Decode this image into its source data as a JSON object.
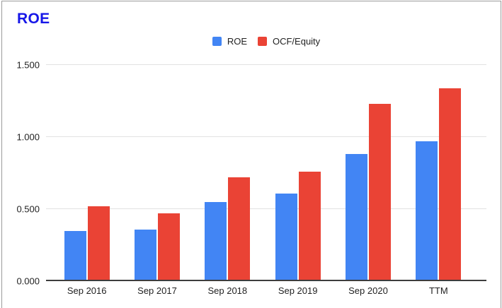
{
  "title": "ROE",
  "title_color": "#1717e8",
  "colors": {
    "roe_series": "#4285f4",
    "ocf_equity_series": "#ea4335",
    "frame_border": "#9b9b9b"
  },
  "legend": [
    {
      "label": "ROE",
      "color": "#4285f4"
    },
    {
      "label": "OCF/Equity",
      "color": "#ea4335"
    }
  ],
  "chart_data": {
    "type": "bar",
    "title": "ROE",
    "categories": [
      "Sep 2016",
      "Sep 2017",
      "Sep 2018",
      "Sep 2019",
      "Sep 2020",
      "TTM"
    ],
    "series": [
      {
        "name": "ROE",
        "color": "#4285f4",
        "values": [
          0.35,
          0.36,
          0.55,
          0.61,
          0.88,
          0.97
        ]
      },
      {
        "name": "OCF/Equity",
        "color": "#ea4335",
        "values": [
          0.52,
          0.47,
          0.72,
          0.76,
          1.23,
          1.34
        ]
      }
    ],
    "xlabel": "",
    "ylabel": "",
    "ylim": [
      0,
      1.5
    ],
    "yticks": [
      {
        "value": 0,
        "label": "0.000"
      },
      {
        "value": 0.5,
        "label": "0.500"
      },
      {
        "value": 1.0,
        "label": "1.000"
      },
      {
        "value": 1.5,
        "label": "1.500"
      }
    ],
    "grid": true,
    "legend_position": "top-center"
  }
}
